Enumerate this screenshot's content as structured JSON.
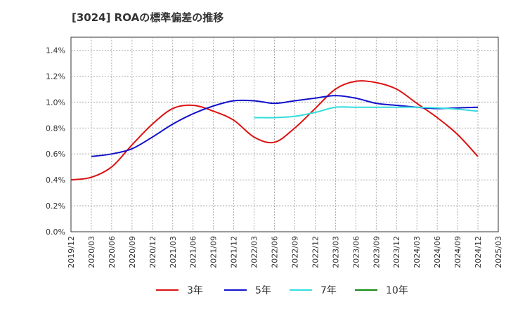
{
  "title": "[3024]  ROAの標準偏差の推移",
  "chart_data": {
    "type": "line",
    "title": "[3024]  ROAの標準偏差の推移",
    "xlabel": "",
    "ylabel": "",
    "x_ticks": [
      "2019/12",
      "2020/03",
      "2020/06",
      "2020/09",
      "2020/12",
      "2021/03",
      "2021/06",
      "2021/09",
      "2021/12",
      "2022/03",
      "2022/06",
      "2022/09",
      "2022/12",
      "2023/03",
      "2023/06",
      "2023/09",
      "2023/12",
      "2024/03",
      "2024/06",
      "2024/09",
      "2024/12",
      "2025/03"
    ],
    "y_ticks": [
      "0.0%",
      "0.2%",
      "0.4%",
      "0.6%",
      "0.8%",
      "1.0%",
      "1.2%",
      "1.4%"
    ],
    "ylim": [
      0,
      1.5
    ],
    "y_unit": "%",
    "grid": true,
    "legend_position": "bottom",
    "series": [
      {
        "name": "3年",
        "color": "#dd1111",
        "x": [
          "2019/12",
          "2020/03",
          "2020/06",
          "2020/09",
          "2020/12",
          "2021/03",
          "2021/06",
          "2021/09",
          "2021/12",
          "2022/03",
          "2022/06",
          "2022/09",
          "2022/12",
          "2023/03",
          "2023/06",
          "2023/09",
          "2023/12",
          "2024/03",
          "2024/06",
          "2024/09",
          "2024/12"
        ],
        "values": [
          0.4,
          0.42,
          0.5,
          0.67,
          0.83,
          0.95,
          0.975,
          0.93,
          0.86,
          0.73,
          0.69,
          0.8,
          0.95,
          1.1,
          1.16,
          1.15,
          1.1,
          0.99,
          0.88,
          0.75,
          0.58
        ]
      },
      {
        "name": "5年",
        "color": "#1111cc",
        "x": [
          "2020/03",
          "2020/06",
          "2020/09",
          "2020/12",
          "2021/03",
          "2021/06",
          "2021/09",
          "2021/12",
          "2022/03",
          "2022/06",
          "2022/09",
          "2022/12",
          "2023/03",
          "2023/06",
          "2023/09",
          "2023/12",
          "2024/03",
          "2024/06",
          "2024/09",
          "2024/12"
        ],
        "values": [
          0.58,
          0.6,
          0.64,
          0.73,
          0.83,
          0.91,
          0.97,
          1.01,
          1.01,
          0.99,
          1.01,
          1.03,
          1.05,
          1.03,
          0.99,
          0.975,
          0.96,
          0.95,
          0.955,
          0.96
        ]
      },
      {
        "name": "7年",
        "color": "#33dddd",
        "x": [
          "2022/03",
          "2022/06",
          "2022/09",
          "2022/12",
          "2023/03",
          "2023/06",
          "2023/09",
          "2023/12",
          "2024/03",
          "2024/06",
          "2024/09",
          "2024/12"
        ],
        "values": [
          0.88,
          0.88,
          0.89,
          0.92,
          0.96,
          0.96,
          0.96,
          0.96,
          0.96,
          0.955,
          0.945,
          0.93
        ]
      },
      {
        "name": "10年",
        "color": "#118811",
        "x": [],
        "values": []
      }
    ]
  }
}
